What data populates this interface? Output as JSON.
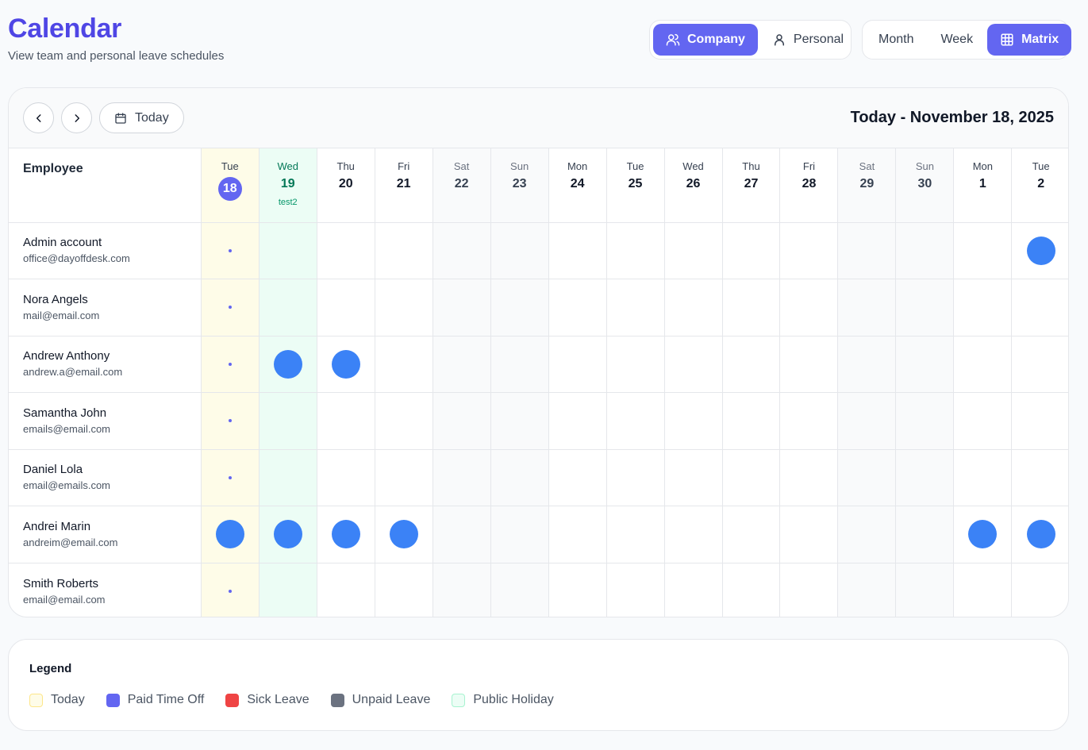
{
  "header": {
    "title": "Calendar",
    "subtitle": "View team and personal leave schedules"
  },
  "scope_toggle": [
    {
      "label": "Company",
      "icon": "users-icon",
      "active": true
    },
    {
      "label": "Personal",
      "icon": "user-icon",
      "active": false
    }
  ],
  "view_toggle": [
    {
      "label": "Month",
      "active": false
    },
    {
      "label": "Week",
      "active": false
    },
    {
      "label": "Matrix",
      "icon": "grid-icon",
      "active": true
    }
  ],
  "toolbar": {
    "prev_icon": "chevron-left-icon",
    "next_icon": "chevron-right-icon",
    "today_label": "Today",
    "current_date": "Today - November 18, 2025"
  },
  "matrix": {
    "employee_header": "Employee",
    "days": [
      {
        "name": "Tue",
        "num": "18",
        "type": "today"
      },
      {
        "name": "Wed",
        "num": "19",
        "type": "holiday",
        "holiday": "test2"
      },
      {
        "name": "Thu",
        "num": "20",
        "type": "weekday"
      },
      {
        "name": "Fri",
        "num": "21",
        "type": "weekday"
      },
      {
        "name": "Sat",
        "num": "22",
        "type": "weekend"
      },
      {
        "name": "Sun",
        "num": "23",
        "type": "weekend"
      },
      {
        "name": "Mon",
        "num": "24",
        "type": "weekday"
      },
      {
        "name": "Tue",
        "num": "25",
        "type": "weekday"
      },
      {
        "name": "Wed",
        "num": "26",
        "type": "weekday"
      },
      {
        "name": "Thu",
        "num": "27",
        "type": "weekday"
      },
      {
        "name": "Fri",
        "num": "28",
        "type": "weekday"
      },
      {
        "name": "Sat",
        "num": "29",
        "type": "weekend"
      },
      {
        "name": "Sun",
        "num": "30",
        "type": "weekend"
      },
      {
        "name": "Mon",
        "num": "1",
        "type": "weekday"
      },
      {
        "name": "Tue",
        "num": "2",
        "type": "weekday"
      }
    ],
    "employees": [
      {
        "name": "Admin account",
        "email": "office@dayoffdesk.com",
        "leave_days": [
          14
        ]
      },
      {
        "name": "Nora Angels",
        "email": "mail@email.com",
        "leave_days": []
      },
      {
        "name": "Andrew Anthony",
        "email": "andrew.a@email.com",
        "leave_days": [
          1,
          2
        ]
      },
      {
        "name": "Samantha John",
        "email": "emails@email.com",
        "leave_days": []
      },
      {
        "name": "Daniel Lola",
        "email": "email@emails.com",
        "leave_days": []
      },
      {
        "name": "Andrei Marin",
        "email": "andreim@email.com",
        "leave_days": [
          0,
          1,
          2,
          3,
          13,
          14
        ]
      },
      {
        "name": "Smith Roberts",
        "email": "email@email.com",
        "leave_days": []
      }
    ],
    "leave_color": "#3b82f6"
  },
  "legend": {
    "title": "Legend",
    "items": [
      {
        "label": "Today",
        "color": "#fefce8",
        "border": "#fde68a"
      },
      {
        "label": "Paid Time Off",
        "color": "#6366f1",
        "border": "#6366f1"
      },
      {
        "label": "Sick Leave",
        "color": "#ef4444",
        "border": "#ef4444"
      },
      {
        "label": "Unpaid Leave",
        "color": "#6b7280",
        "border": "#6b7280"
      },
      {
        "label": "Public Holiday",
        "color": "#ecfdf5",
        "border": "#a7f3d0"
      }
    ]
  }
}
